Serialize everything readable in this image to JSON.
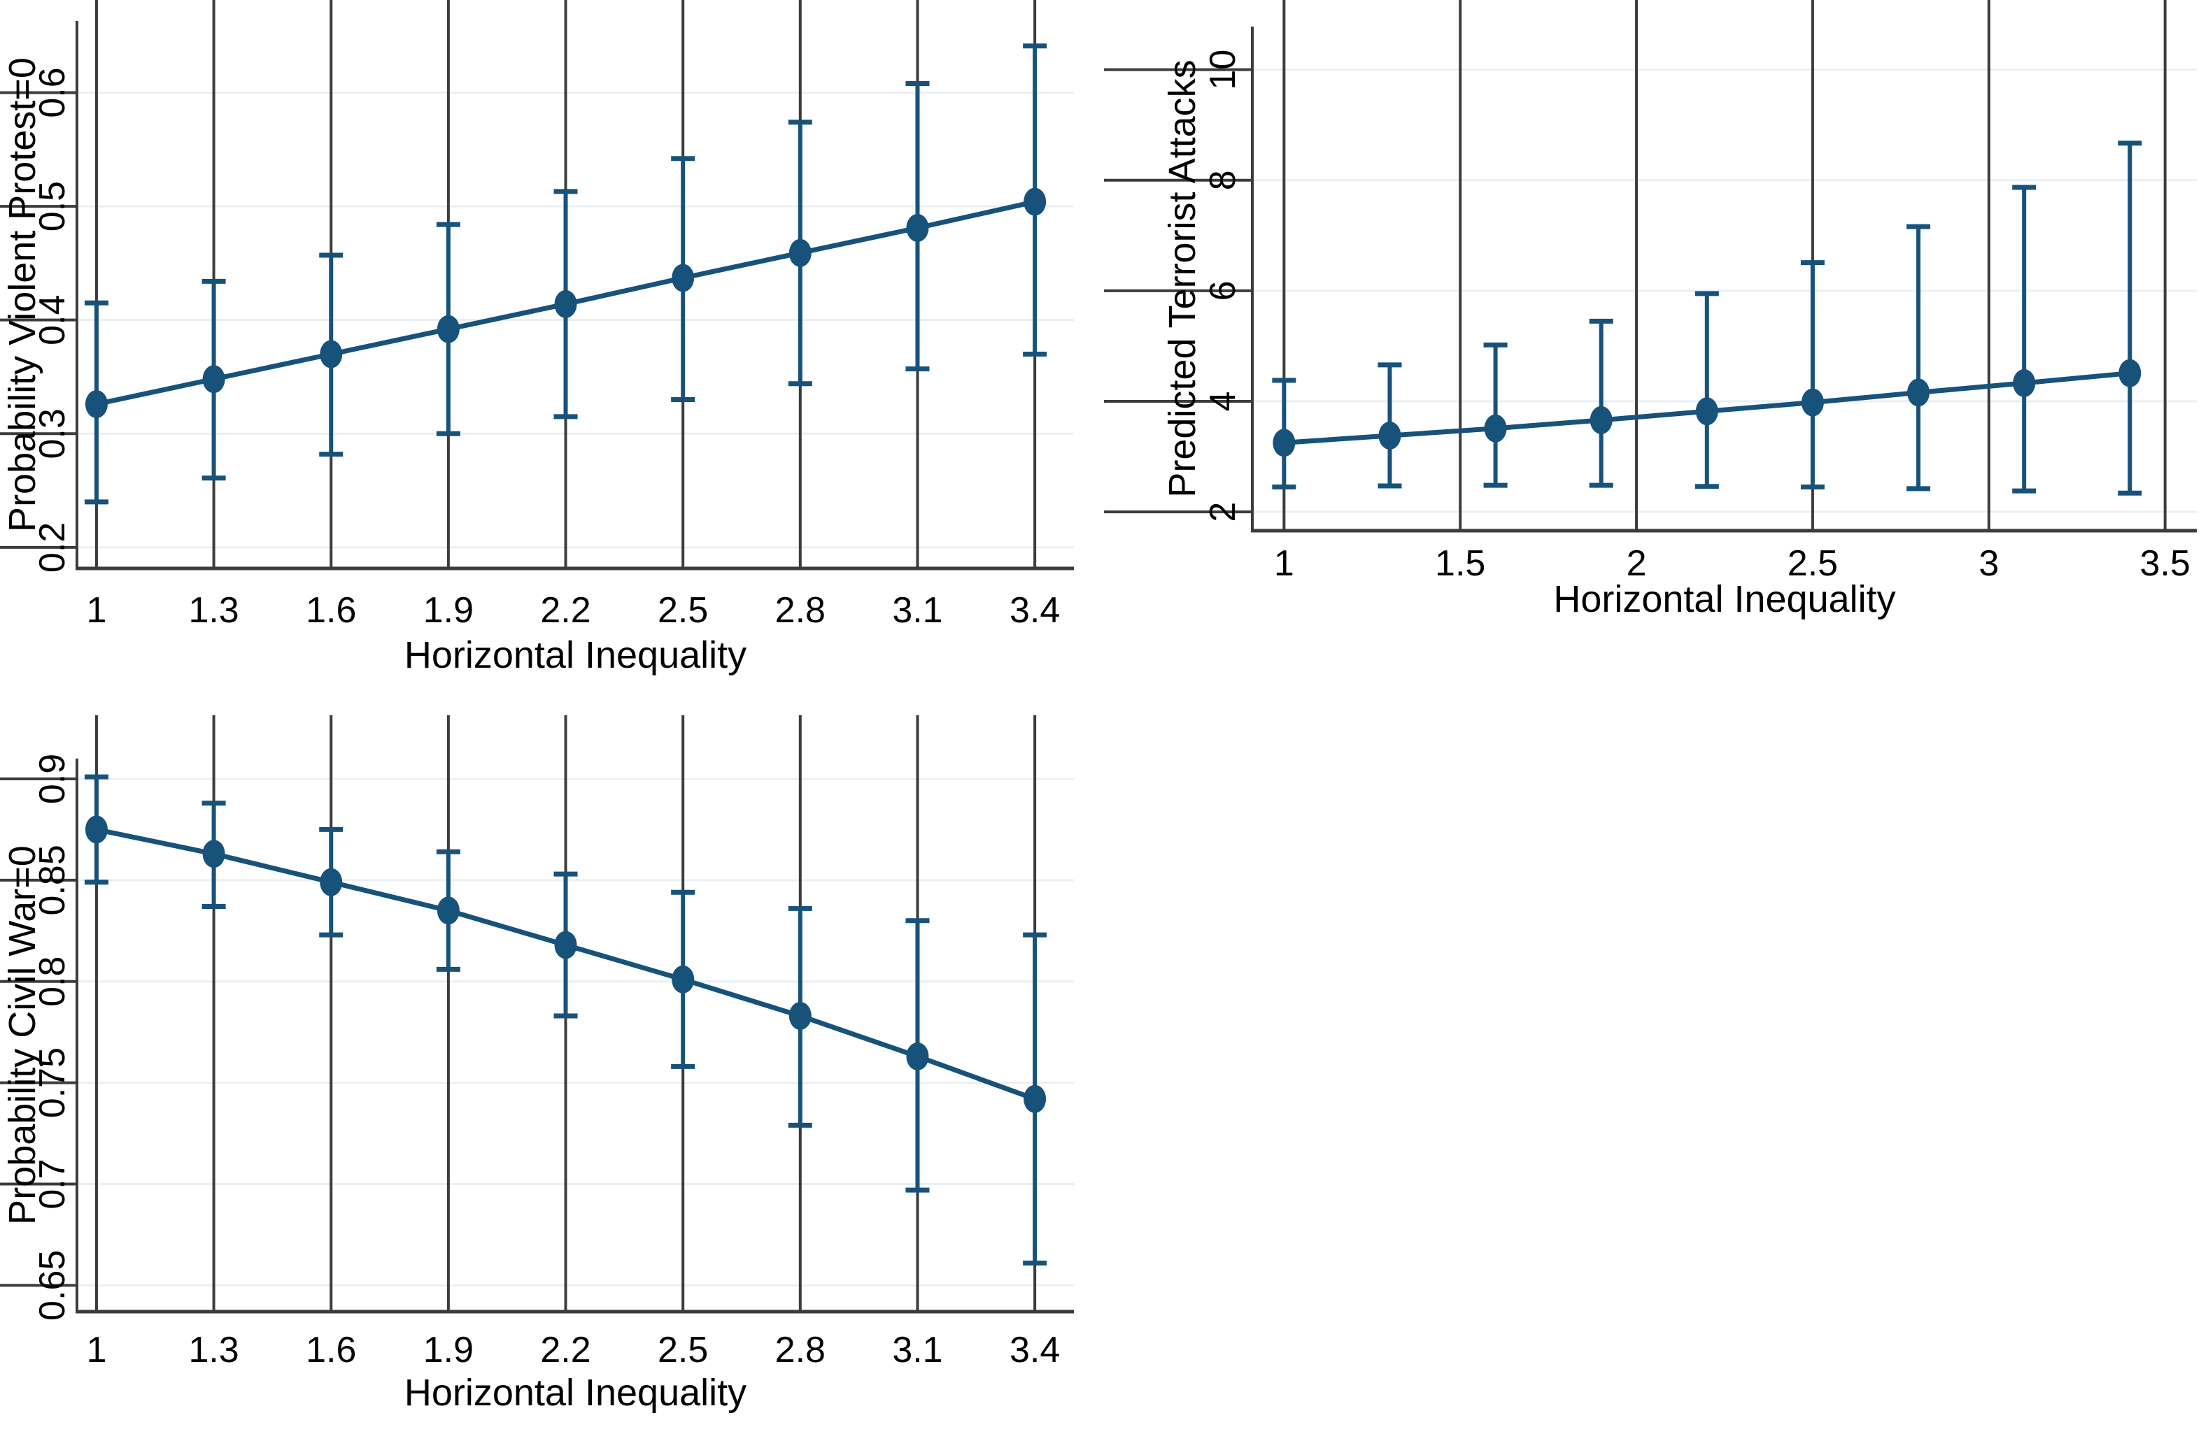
{
  "figure": {
    "background": "#ffffff",
    "description": "Three marginal effect plots of Horizontal Inequality with 95% confidence interval error bars"
  },
  "colors": {
    "series": "#17527b",
    "grid": "#e9f0f5",
    "axis": "#3c3c3c",
    "text": "#000000"
  },
  "chart_data": [
    {
      "id": "violent-protest",
      "type": "line",
      "marker": "filled-circle",
      "error_bars": true,
      "grid": true,
      "legend": "none",
      "title": "",
      "xlabel": "Horizontal Inequality",
      "ylabel": "Probability Violent Protest=0",
      "x": [
        1,
        1.3,
        1.6,
        1.9,
        2.2,
        2.5,
        2.8,
        3.1,
        3.4
      ],
      "y": [
        0.326,
        0.348,
        0.37,
        0.392,
        0.414,
        0.437,
        0.459,
        0.481,
        0.504
      ],
      "ci_low": [
        0.24,
        0.261,
        0.282,
        0.3,
        0.315,
        0.33,
        0.344,
        0.357,
        0.37
      ],
      "ci_high": [
        0.415,
        0.434,
        0.457,
        0.484,
        0.513,
        0.542,
        0.574,
        0.608,
        0.641
      ],
      "xticks": [
        1,
        1.3,
        1.6,
        1.9,
        2.2,
        2.5,
        2.8,
        3.1,
        3.4
      ],
      "xtick_labels": [
        "1",
        "1.3",
        "1.6",
        "1.9",
        "2.2",
        "2.5",
        "2.8",
        "3.1",
        "3.4"
      ],
      "yticks": [
        0.2,
        0.3,
        0.4,
        0.5,
        0.6
      ],
      "ytick_labels": [
        "0.2",
        "0.3",
        "0.4",
        "0.5",
        "0.6"
      ],
      "xlim": [
        0.95,
        3.5
      ],
      "ylim": [
        0.1815,
        0.663
      ]
    },
    {
      "id": "terrorist-attacks",
      "type": "line",
      "marker": "filled-circle",
      "error_bars": true,
      "grid": true,
      "legend": "none",
      "title": "",
      "xlabel": "Horizontal Inequality",
      "ylabel": "Predicted Terrorist Attacks",
      "x": [
        1,
        1.3,
        1.6,
        1.9,
        2.2,
        2.5,
        2.8,
        3.1,
        3.4
      ],
      "y": [
        3.25,
        3.38,
        3.51,
        3.66,
        3.82,
        3.98,
        4.16,
        4.33,
        4.51
      ],
      "ci_low": [
        2.45,
        2.47,
        2.48,
        2.48,
        2.46,
        2.45,
        2.42,
        2.38,
        2.34
      ],
      "ci_high": [
        4.38,
        4.66,
        5.02,
        5.45,
        5.95,
        6.51,
        7.16,
        7.87,
        8.67
      ],
      "xticks": [
        1,
        1.5,
        2,
        2.5,
        3,
        3.5
      ],
      "xtick_labels": [
        "1",
        "1.5",
        "2",
        "2.5",
        "3",
        "3.5"
      ],
      "yticks": [
        2,
        4,
        6,
        8,
        10
      ],
      "ytick_labels": [
        "2",
        "4",
        "6",
        "8",
        "10"
      ],
      "xlim": [
        0.91,
        3.59
      ],
      "ylim": [
        1.66,
        10.78
      ]
    },
    {
      "id": "civil-war",
      "type": "line",
      "marker": "filled-circle",
      "error_bars": true,
      "grid": true,
      "legend": "none",
      "title": "",
      "xlabel": "Horizontal Inequality",
      "ylabel": "Probability Civil War=0",
      "x": [
        1,
        1.3,
        1.6,
        1.9,
        2.2,
        2.5,
        2.8,
        3.1,
        3.4
      ],
      "y": [
        0.875,
        0.863,
        0.849,
        0.835,
        0.818,
        0.801,
        0.783,
        0.763,
        0.742
      ],
      "ci_low": [
        0.849,
        0.837,
        0.823,
        0.806,
        0.783,
        0.758,
        0.729,
        0.697,
        0.661
      ],
      "ci_high": [
        0.901,
        0.888,
        0.875,
        0.864,
        0.853,
        0.844,
        0.836,
        0.83,
        0.823
      ],
      "xticks": [
        1,
        1.3,
        1.6,
        1.9,
        2.2,
        2.5,
        2.8,
        3.1,
        3.4
      ],
      "xtick_labels": [
        "1",
        "1.3",
        "1.6",
        "1.9",
        "2.2",
        "2.5",
        "2.8",
        "3.1",
        "3.4"
      ],
      "yticks": [
        0.65,
        0.7,
        0.75,
        0.8,
        0.85,
        0.9
      ],
      "ytick_labels": [
        "0.65",
        "0.7",
        "0.75",
        "0.8",
        "0.85",
        "0.9"
      ],
      "xlim": [
        0.95,
        3.5
      ],
      "ylim": [
        0.637,
        0.91
      ]
    }
  ]
}
